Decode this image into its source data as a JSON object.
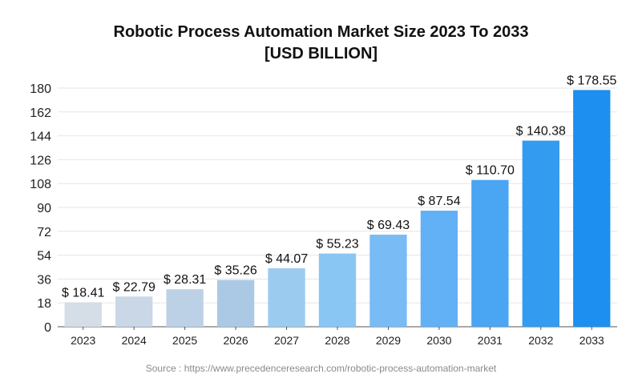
{
  "chart_data": {
    "type": "bar",
    "title": "Robotic Process Automation Market Size 2023 To 2033",
    "subtitle": "[USD BILLION]",
    "categories": [
      "2023",
      "2024",
      "2025",
      "2026",
      "2027",
      "2028",
      "2029",
      "2030",
      "2031",
      "2032",
      "2033"
    ],
    "values": [
      18.41,
      22.79,
      28.31,
      35.26,
      44.07,
      55.23,
      69.43,
      87.54,
      110.7,
      140.38,
      178.55
    ],
    "data_labels": [
      "$ 18.41",
      "$ 22.79",
      "$ 28.31",
      "$ 35.26",
      "$ 44.07",
      "$ 55.23",
      "$ 69.43",
      "$ 87.54",
      "$ 110.70",
      "$ 140.38",
      "$ 178.55"
    ],
    "yticks": [
      "0",
      "18",
      "36",
      "54",
      "72",
      "90",
      "108",
      "126",
      "144",
      "162",
      "180"
    ],
    "ylim": [
      0,
      180
    ],
    "grid": true,
    "bar_colors": [
      "#d5dde6",
      "#c9d7e7",
      "#bdd1e6",
      "#abc9e5",
      "#9ccbf0",
      "#8ac6f4",
      "#78bbf5",
      "#62b0f5",
      "#4aa5f2",
      "#339bf0",
      "#1c8ff0"
    ]
  },
  "source_text": "Source : https://www.precedenceresearch.com/robotic-process-automation-market"
}
